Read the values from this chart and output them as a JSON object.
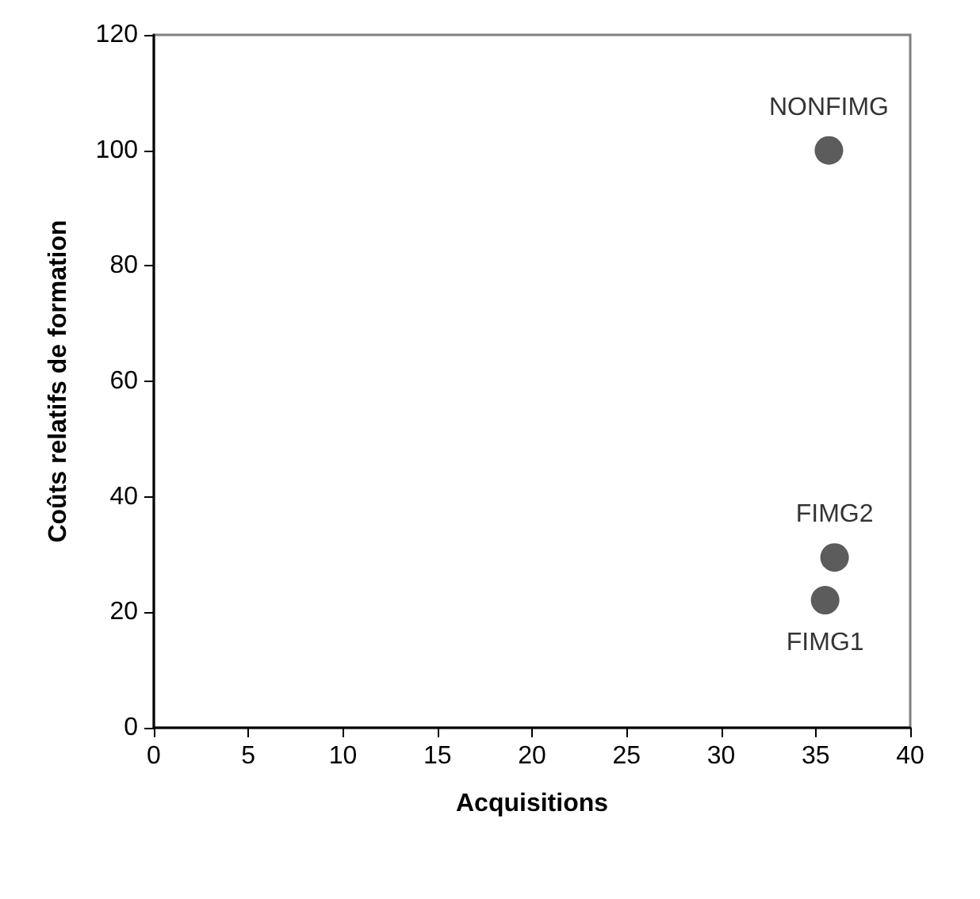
{
  "chart_data": {
    "type": "scatter",
    "xlabel": "Acquisitions",
    "ylabel": "Coûts relatifs de formation",
    "series": [
      {
        "name": "NONFIMG",
        "color": "#333333",
        "x": [
          35.7
        ],
        "values": [
          100
        ]
      },
      {
        "name": "FIMG2",
        "color": "#333333",
        "x": [
          36.0
        ],
        "values": [
          29.5
        ]
      },
      {
        "name": "FIMG1",
        "color": "#333333",
        "x": [
          35.5
        ],
        "values": [
          22.1
        ]
      }
    ],
    "xlim": [
      0,
      40
    ],
    "xticks": [
      0,
      5,
      10,
      15,
      20,
      25,
      30,
      35,
      40
    ],
    "ylim": [
      0,
      120
    ],
    "yticks": [
      0,
      20,
      40,
      60,
      80,
      100,
      120
    ],
    "grid": false,
    "legend": false,
    "marker": "circle"
  }
}
